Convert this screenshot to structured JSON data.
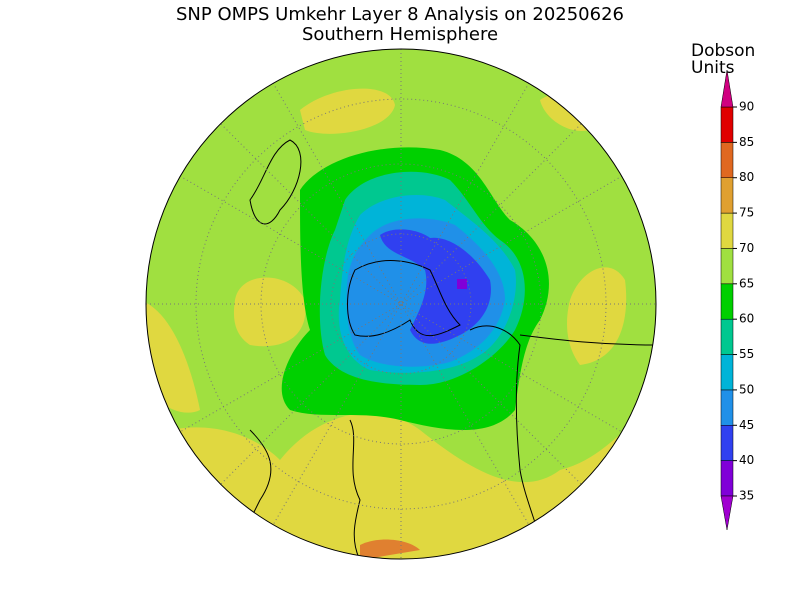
{
  "title": "SNP OMPS Umkehr Layer 8 Analysis on 20250626",
  "subtitle": "Southern Hemisphere",
  "colorbar": {
    "label_lines": [
      "Dobson",
      "Units"
    ],
    "ticks": [
      35,
      40,
      45,
      50,
      55,
      60,
      65,
      70,
      75,
      80,
      85,
      90
    ],
    "range": [
      35,
      90
    ],
    "colors": [
      "#8000d8",
      "#3040f0",
      "#2090e8",
      "#00b4d8",
      "#00c890",
      "#00d000",
      "#a0e040",
      "#e0d840",
      "#e0a030",
      "#e06820",
      "#e00000"
    ],
    "under_color": "#a000d0",
    "over_color": "#d00080"
  }
}
